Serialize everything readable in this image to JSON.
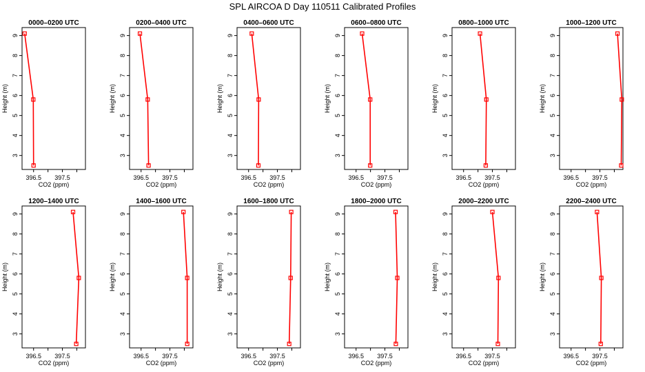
{
  "title": "SPL AIRCOA D  Day 110511  Calibrated Profiles",
  "chart_data": {
    "type": "line",
    "xlabel": "CO2 (ppm)",
    "ylabel": "Height (m)",
    "xlim": [
      396.1,
      398.3
    ],
    "ylim": [
      2.3,
      9.4
    ],
    "xticks": [
      396.5,
      397.5
    ],
    "xticks_minor": [
      396.5,
      397.0,
      397.5,
      398.0
    ],
    "yticks": [
      3,
      4,
      5,
      6,
      7,
      8,
      9
    ],
    "series_color": "#ff0000",
    "panels": [
      {
        "title": "0000–0200 UTC",
        "x": [
          396.19,
          396.49,
          396.5
        ],
        "y": [
          9.1,
          5.8,
          2.5
        ]
      },
      {
        "title": "0200–0400 UTC",
        "x": [
          396.46,
          396.73,
          396.76
        ],
        "y": [
          9.1,
          5.8,
          2.5
        ]
      },
      {
        "title": "0400–0600 UTC",
        "x": [
          396.61,
          396.85,
          396.84
        ],
        "y": [
          9.1,
          5.8,
          2.5
        ]
      },
      {
        "title": "0600–0800 UTC",
        "x": [
          396.71,
          396.99,
          396.99
        ],
        "y": [
          9.1,
          5.8,
          2.5
        ]
      },
      {
        "title": "0800–1000 UTC",
        "x": [
          397.07,
          397.29,
          397.27
        ],
        "y": [
          9.1,
          5.8,
          2.5
        ]
      },
      {
        "title": "1000–1200 UTC",
        "x": [
          398.11,
          398.26,
          398.24
        ],
        "y": [
          9.1,
          5.8,
          2.5
        ]
      },
      {
        "title": "1200–1400 UTC",
        "x": [
          397.87,
          398.07,
          397.98
        ],
        "y": [
          9.1,
          5.8,
          2.5
        ]
      },
      {
        "title": "1400–1600 UTC",
        "x": [
          397.97,
          398.1,
          398.1
        ],
        "y": [
          9.1,
          5.8,
          2.5
        ]
      },
      {
        "title": "1600–1800 UTC",
        "x": [
          397.98,
          397.96,
          397.91
        ],
        "y": [
          9.1,
          5.8,
          2.5
        ]
      },
      {
        "title": "1800–2000 UTC",
        "x": [
          397.87,
          397.93,
          397.88
        ],
        "y": [
          9.1,
          5.8,
          2.5
        ]
      },
      {
        "title": "2000–2200 UTC",
        "x": [
          397.5,
          397.71,
          397.69
        ],
        "y": [
          9.1,
          5.8,
          2.5
        ]
      },
      {
        "title": "2200–2400 UTC",
        "x": [
          397.4,
          397.55,
          397.53
        ],
        "y": [
          9.1,
          5.8,
          2.5
        ]
      }
    ]
  }
}
